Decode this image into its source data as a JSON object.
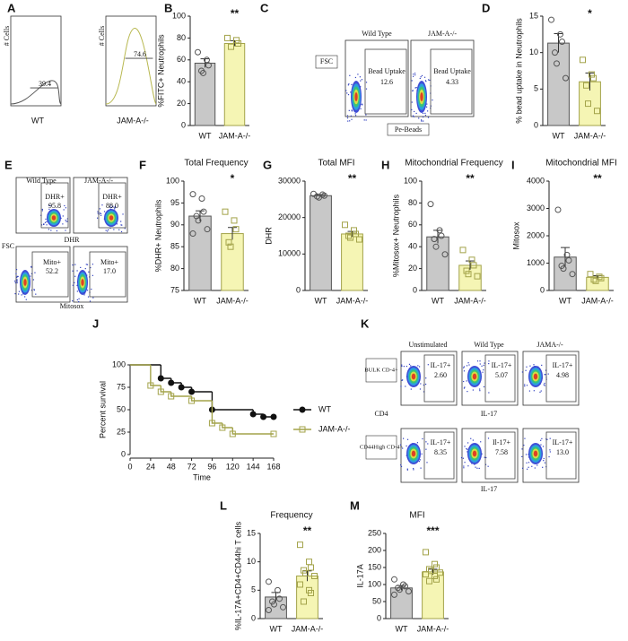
{
  "panel_letters": [
    "A",
    "B",
    "C",
    "D",
    "E",
    "F",
    "G",
    "H",
    "I",
    "J",
    "K",
    "L",
    "M"
  ],
  "chart_data": [
    {
      "type": "bar",
      "y_label": "%FITC+ Neutrophils",
      "categories": [
        "WT",
        "JAM-A-/-"
      ],
      "values": [
        57,
        75
      ],
      "errors": [
        4,
        2.5
      ],
      "points": [
        [
          67,
          60,
          55,
          50,
          48
        ],
        [
          80,
          78,
          75,
          72
        ]
      ],
      "ylim": [
        0,
        100
      ],
      "yticks": [
        0,
        20,
        40,
        60,
        80,
        100
      ],
      "significance": "**",
      "colors": [
        "#c8c8c8",
        "#f5f5b4"
      ],
      "edge_colors": [
        "#555555",
        "#a3a34a"
      ],
      "markers": [
        "circle",
        "square"
      ]
    },
    {
      "type": "bar",
      "y_label": "% bead uptake in Neutrophils",
      "categories": [
        "WT",
        "JAM-A-/-"
      ],
      "values": [
        11.3,
        6
      ],
      "errors": [
        1.3,
        1.2
      ],
      "points": [
        [
          14.5,
          12.5,
          11.5,
          10,
          8.5,
          6.5
        ],
        [
          9,
          7,
          6.5,
          5.5,
          3,
          2
        ]
      ],
      "ylim": [
        0,
        15
      ],
      "yticks": [
        0,
        5,
        10,
        15
      ],
      "significance": "*",
      "colors": [
        "#c8c8c8",
        "#f5f5b4"
      ],
      "edge_colors": [
        "#555555",
        "#a3a34a"
      ],
      "markers": [
        "circle",
        "square"
      ]
    },
    {
      "type": "bar",
      "title": "Total Frequency",
      "y_label": "%DHR+ Neutrophils",
      "categories": [
        "WT",
        "JAM-A-/-"
      ],
      "values": [
        92,
        88
      ],
      "errors": [
        1.2,
        1.4
      ],
      "points": [
        [
          97,
          96,
          93,
          92,
          91,
          89,
          88
        ],
        [
          93,
          91,
          89,
          86,
          85
        ]
      ],
      "ylim": [
        75,
        100
      ],
      "yticks": [
        75,
        80,
        85,
        90,
        95,
        100
      ],
      "significance": "*",
      "colors": [
        "#c8c8c8",
        "#f5f5b4"
      ],
      "edge_colors": [
        "#555555",
        "#a3a34a"
      ],
      "markers": [
        "circle",
        "square"
      ]
    },
    {
      "type": "bar",
      "title": "Total MFI",
      "y_label": "DHR",
      "categories": [
        "WT",
        "JAM-A-/-"
      ],
      "values": [
        26000,
        15500
      ],
      "errors": [
        300,
        700
      ],
      "points": [
        [
          26500,
          26300,
          26000,
          25800,
          25500
        ],
        [
          18000,
          16500,
          15500,
          15000,
          14500,
          14000
        ]
      ],
      "ylim": [
        0,
        30000
      ],
      "yticks": [
        0,
        10000,
        20000,
        30000
      ],
      "significance": "**",
      "colors": [
        "#c8c8c8",
        "#f5f5b4"
      ],
      "edge_colors": [
        "#555555",
        "#a3a34a"
      ],
      "markers": [
        "circle",
        "square"
      ]
    },
    {
      "type": "bar",
      "title": "Mitochondrial Frequency",
      "y_label": "%Mitosox+ Neutrophils",
      "categories": [
        "WT",
        "JAM-A-/-"
      ],
      "values": [
        49,
        23
      ],
      "errors": [
        6,
        4
      ],
      "points": [
        [
          79,
          55,
          50,
          47,
          40,
          33
        ],
        [
          37,
          28,
          23,
          18,
          15,
          13
        ]
      ],
      "ylim": [
        0,
        100
      ],
      "yticks": [
        0,
        20,
        40,
        60,
        80,
        100
      ],
      "significance": "**",
      "colors": [
        "#c8c8c8",
        "#f5f5b4"
      ],
      "edge_colors": [
        "#555555",
        "#a3a34a"
      ],
      "markers": [
        "circle",
        "square"
      ]
    },
    {
      "type": "bar",
      "title": "Mitochondrial MFI",
      "y_label": "Mitosox",
      "categories": [
        "WT",
        "JAM-A-/-"
      ],
      "values": [
        1220,
        480
      ],
      "errors": [
        350,
        60
      ],
      "points": [
        [
          2950,
          1300,
          1100,
          900,
          800,
          600
        ],
        [
          600,
          500,
          450,
          400,
          350
        ]
      ],
      "ylim": [
        0,
        4000
      ],
      "yticks": [
        0,
        1000,
        2000,
        3000,
        4000
      ],
      "significance": "**",
      "colors": [
        "#c8c8c8",
        "#f5f5b4"
      ],
      "edge_colors": [
        "#555555",
        "#a3a34a"
      ],
      "markers": [
        "circle",
        "square"
      ]
    },
    {
      "type": "survival",
      "y_label": "Percent survival",
      "x_label": "Time",
      "xlim": [
        0,
        168
      ],
      "xticks": [
        0,
        24,
        48,
        72,
        96,
        120,
        144,
        168
      ],
      "ylim": [
        0,
        100
      ],
      "yticks": [
        0,
        25,
        50,
        75,
        100
      ],
      "series": [
        {
          "name": "WT",
          "color": "#111111",
          "marker": "circle",
          "x": [
            0,
            36,
            48,
            60,
            72,
            96,
            144,
            156,
            168
          ],
          "values": [
            100,
            85,
            80,
            75,
            70,
            50,
            45,
            42,
            42
          ]
        },
        {
          "name": "JAM-A-/-",
          "color": "#a3a34a",
          "marker": "square",
          "x": [
            0,
            24,
            36,
            48,
            72,
            96,
            108,
            120,
            168
          ],
          "values": [
            100,
            77,
            70,
            65,
            60,
            35,
            30,
            23,
            23
          ]
        }
      ]
    },
    {
      "type": "bar",
      "title": "Frequency",
      "y_label": "%IL-17A+CD4+CD44hi T cells",
      "categories": [
        "WT",
        "JAM-A-/-"
      ],
      "values": [
        3.8,
        7.5
      ],
      "errors": [
        0.8,
        0.9
      ],
      "points": [
        [
          6.5,
          5,
          3.5,
          3,
          2.5,
          2,
          1.5
        ],
        [
          13,
          10,
          9,
          8.5,
          8,
          7.5,
          6,
          5,
          4.5,
          3
        ]
      ],
      "ylim": [
        0,
        15
      ],
      "yticks": [
        0,
        5,
        10,
        15
      ],
      "significance": "**",
      "colors": [
        "#c8c8c8",
        "#f5f5b4"
      ],
      "edge_colors": [
        "#555555",
        "#a3a34a"
      ],
      "markers": [
        "circle",
        "square"
      ]
    },
    {
      "type": "bar",
      "title": "MFI",
      "y_label": "IL-17A",
      "categories": [
        "WT",
        "JAM-A-/-"
      ],
      "values": [
        90,
        137
      ],
      "errors": [
        7,
        8
      ],
      "points": [
        [
          115,
          100,
          95,
          90,
          85,
          80,
          70
        ],
        [
          195,
          160,
          150,
          145,
          140,
          135,
          130,
          125,
          115,
          110
        ]
      ],
      "ylim": [
        0,
        250
      ],
      "yticks": [
        0,
        50,
        100,
        150,
        200,
        250
      ],
      "significance": "***",
      "colors": [
        "#c8c8c8",
        "#f5f5b4"
      ],
      "edge_colors": [
        "#555555",
        "#a3a34a"
      ],
      "markers": [
        "circle",
        "square"
      ]
    }
  ],
  "flow_A": {
    "y_label": "# Cells",
    "samples": [
      {
        "label": "WT",
        "gate": "39.4"
      },
      {
        "label": "JAM-A-/-",
        "gate": "74.6"
      }
    ]
  },
  "flow_C": {
    "headers": [
      "Wild Type",
      "JAM-A-/-"
    ],
    "y_label": "FSC",
    "x_label": "Pe-Beads",
    "gates": [
      {
        "name": "Bead Uptake",
        "value": "12.6"
      },
      {
        "name": "Bead Uptake",
        "value": "4.33"
      }
    ]
  },
  "flow_E": {
    "headers": [
      "Wild Type",
      "JAM-A-/-"
    ],
    "y_label": "FSC",
    "rows": [
      {
        "x_label": "DHR",
        "gates": [
          {
            "name": "DHR+",
            "value": "95.8"
          },
          {
            "name": "DHR+",
            "value": "88.0"
          }
        ]
      },
      {
        "x_label": "Mitosox",
        "gates": [
          {
            "name": "Mito+",
            "value": "52.2"
          },
          {
            "name": "Mito+",
            "value": "17.0"
          }
        ]
      }
    ]
  },
  "flow_K": {
    "headers": [
      "Unstimulated",
      "Wild Type",
      "JAMA-/-"
    ],
    "rows": [
      {
        "label": "BULK CD-4+",
        "y_label": "CD4",
        "x_label": "IL-17",
        "gates": [
          {
            "name": "IL-17+",
            "value": "2.60"
          },
          {
            "name": "IL-17+",
            "value": "5.07"
          },
          {
            "name": "IL-17+",
            "value": "4.98"
          }
        ]
      },
      {
        "label": "CD44High CD-4+",
        "x_label": "IL-17",
        "gates": [
          {
            "name": "IL-17+",
            "value": "8.35"
          },
          {
            "name": "Il-17+",
            "value": "7.58"
          },
          {
            "name": "IL-17+",
            "value": "13.0"
          }
        ]
      }
    ]
  }
}
